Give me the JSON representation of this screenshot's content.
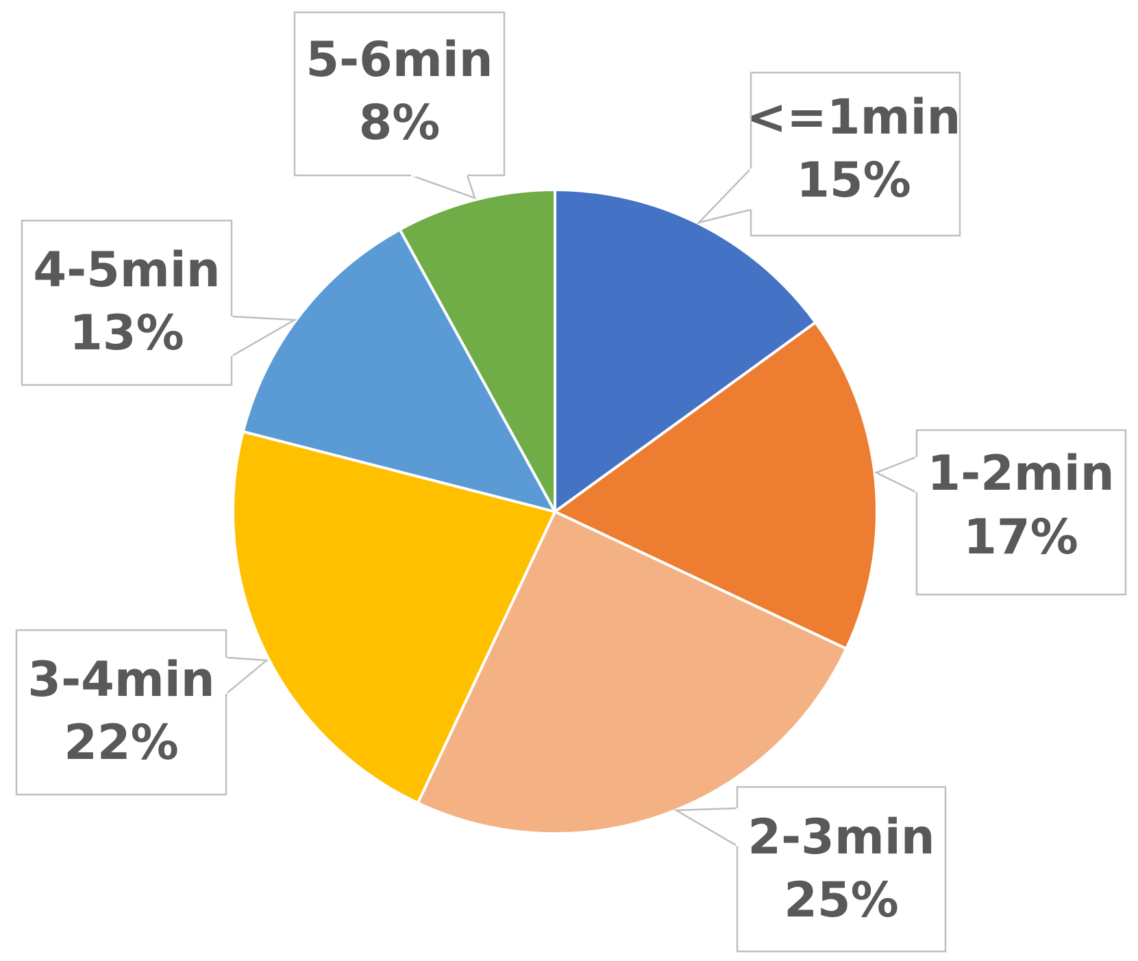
{
  "chart_data": {
    "type": "pie",
    "title": "",
    "start_angle_deg": 0,
    "direction": "clockwise",
    "slices": [
      {
        "label": "<=1min",
        "value": 15,
        "value_label": "15%",
        "color": "#4472C4"
      },
      {
        "label": "1-2min",
        "value": 17,
        "value_label": "17%",
        "color": "#ED7D31"
      },
      {
        "label": "2-3min",
        "value": 25,
        "value_label": "25%",
        "color": "#F4B183"
      },
      {
        "label": "3-4min",
        "value": 22,
        "value_label": "22%",
        "color": "#FFC000"
      },
      {
        "label": "4-5min",
        "value": 13,
        "value_label": "13%",
        "color": "#5B9BD5"
      },
      {
        "label": "5-6min",
        "value": 8,
        "value_label": "8%",
        "color": "#70AD47"
      }
    ],
    "data_labels": "callout boxes with category name and percentage",
    "legend": "none"
  }
}
